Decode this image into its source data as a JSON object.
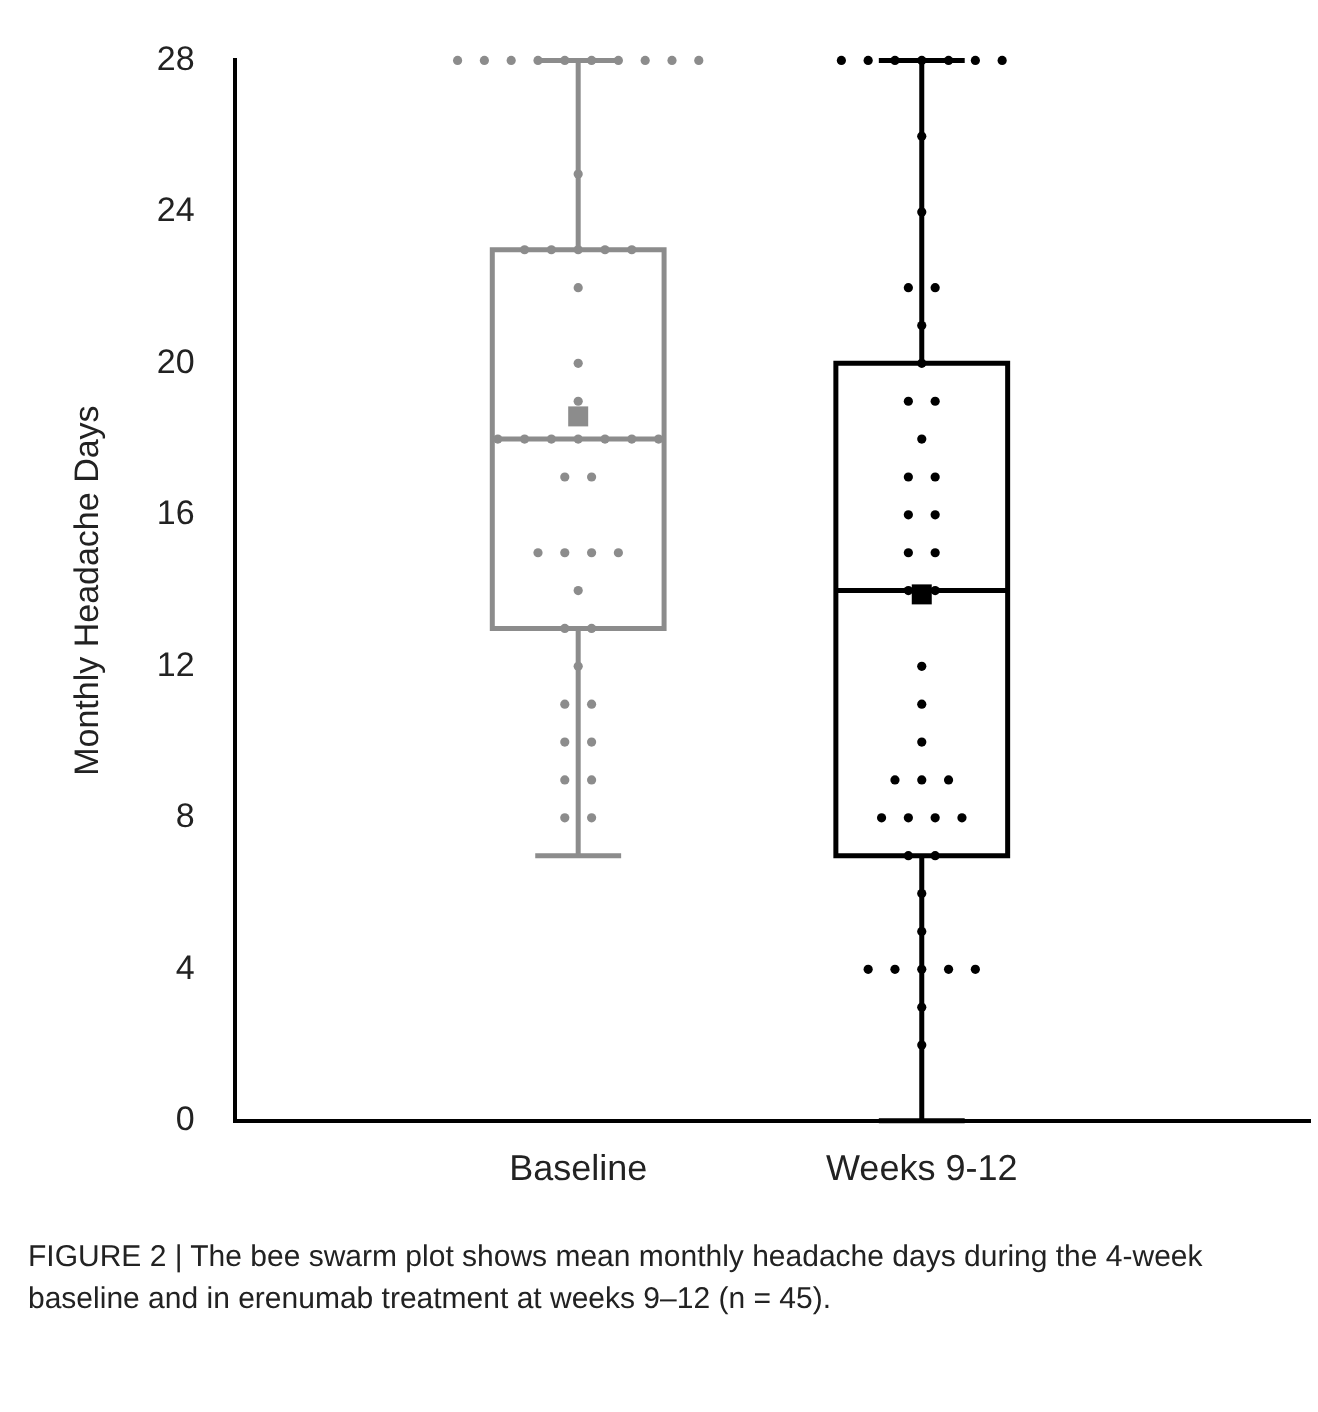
{
  "chart_data": {
    "type": "box",
    "ylabel": "Monthly Headache Days",
    "categories": [
      "Baseline",
      "Weeks 9-12"
    ],
    "ylim": [
      0,
      28
    ],
    "yticks": [
      0,
      4,
      8,
      12,
      16,
      20,
      24,
      28
    ],
    "grid": false,
    "legend": false,
    "marker": "circle",
    "colors": [
      "#8c8c8c",
      "#000000"
    ],
    "boxes": [
      {
        "low": 7,
        "q1": 13,
        "median": 18,
        "q3": 23,
        "high": 28,
        "mean": 18.6
      },
      {
        "low": 0,
        "q1": 7,
        "median": 14,
        "q3": 20,
        "high": 28,
        "mean": 13.9
      }
    ],
    "series": [
      {
        "type": "scatter",
        "color": "#8c8c8c",
        "x": [
          "Baseline",
          "Baseline",
          "Baseline",
          "Baseline",
          "Baseline",
          "Baseline",
          "Baseline",
          "Baseline",
          "Baseline",
          "Baseline",
          "Baseline",
          "Baseline",
          "Baseline",
          "Baseline",
          "Baseline",
          "Baseline",
          "Baseline",
          "Baseline",
          "Baseline",
          "Baseline",
          "Baseline",
          "Baseline",
          "Baseline",
          "Baseline",
          "Baseline",
          "Baseline",
          "Baseline",
          "Baseline",
          "Baseline",
          "Baseline",
          "Baseline",
          "Baseline",
          "Baseline",
          "Baseline",
          "Baseline",
          "Baseline",
          "Baseline",
          "Baseline",
          "Baseline",
          "Baseline",
          "Baseline",
          "Baseline",
          "Baseline",
          "Baseline"
        ],
        "values": [
          28,
          28,
          28,
          28,
          28,
          28,
          28,
          28,
          28,
          28,
          25,
          23,
          23,
          23,
          23,
          23,
          22,
          20,
          19,
          18,
          18,
          18,
          18,
          18,
          18,
          18,
          17,
          17,
          15,
          15,
          15,
          15,
          14,
          13,
          13,
          12,
          11,
          11,
          10,
          10,
          9,
          9,
          8,
          8
        ]
      },
      {
        "type": "scatter",
        "color": "#000000",
        "x": [
          "Weeks 9-12",
          "Weeks 9-12",
          "Weeks 9-12",
          "Weeks 9-12",
          "Weeks 9-12",
          "Weeks 9-12",
          "Weeks 9-12",
          "Weeks 9-12",
          "Weeks 9-12",
          "Weeks 9-12",
          "Weeks 9-12",
          "Weeks 9-12",
          "Weeks 9-12",
          "Weeks 9-12",
          "Weeks 9-12",
          "Weeks 9-12",
          "Weeks 9-12",
          "Weeks 9-12",
          "Weeks 9-12",
          "Weeks 9-12",
          "Weeks 9-12",
          "Weeks 9-12",
          "Weeks 9-12",
          "Weeks 9-12",
          "Weeks 9-12",
          "Weeks 9-12",
          "Weeks 9-12",
          "Weeks 9-12",
          "Weeks 9-12",
          "Weeks 9-12",
          "Weeks 9-12",
          "Weeks 9-12",
          "Weeks 9-12",
          "Weeks 9-12",
          "Weeks 9-12",
          "Weeks 9-12",
          "Weeks 9-12",
          "Weeks 9-12",
          "Weeks 9-12",
          "Weeks 9-12",
          "Weeks 9-12",
          "Weeks 9-12",
          "Weeks 9-12",
          "Weeks 9-12",
          "Weeks 9-12"
        ],
        "values": [
          28,
          28,
          28,
          28,
          28,
          28,
          28,
          26,
          24,
          22,
          22,
          21,
          20,
          19,
          19,
          18,
          17,
          17,
          16,
          16,
          15,
          15,
          14,
          14,
          12,
          11,
          10,
          9,
          9,
          9,
          8,
          8,
          8,
          8,
          7,
          7,
          6,
          5,
          4,
          4,
          4,
          4,
          4,
          3,
          2
        ]
      }
    ],
    "annotations": [
      "FIGURE 2 | The bee swarm plot shows mean monthly headache days during the 4-week baseline and in erenumab treatment at weeks 9–12 (n = 45)."
    ]
  }
}
